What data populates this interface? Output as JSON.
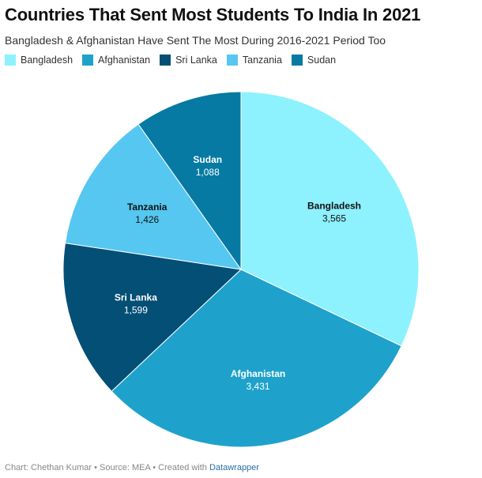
{
  "title": "Countries That Sent Most Students To India In 2021",
  "subtitle": "Bangladesh & Afghanistan Have Sent The Most During 2016-2021 Period Too",
  "footer": {
    "prefix": "Chart: Chethan Kumar • Source: MEA • Created with ",
    "link": "Datawrapper"
  },
  "chart_data": {
    "type": "pie",
    "categories": [
      "Bangladesh",
      "Afghanistan",
      "Sri Lanka",
      "Tanzania",
      "Sudan"
    ],
    "values": [
      3565,
      3431,
      1599,
      1426,
      1088
    ],
    "value_labels": [
      "3,565",
      "3,431",
      "1,599",
      "1,426",
      "1,088"
    ],
    "colors": [
      "#8ef1fe",
      "#1ea2cb",
      "#044f76",
      "#55c7f0",
      "#067aa3"
    ],
    "label_colors": [
      "#111111",
      "#ffffff",
      "#ffffff",
      "#111111",
      "#ffffff"
    ],
    "legend_position": "top-left",
    "start": "12 o'clock",
    "direction": "clockwise"
  }
}
